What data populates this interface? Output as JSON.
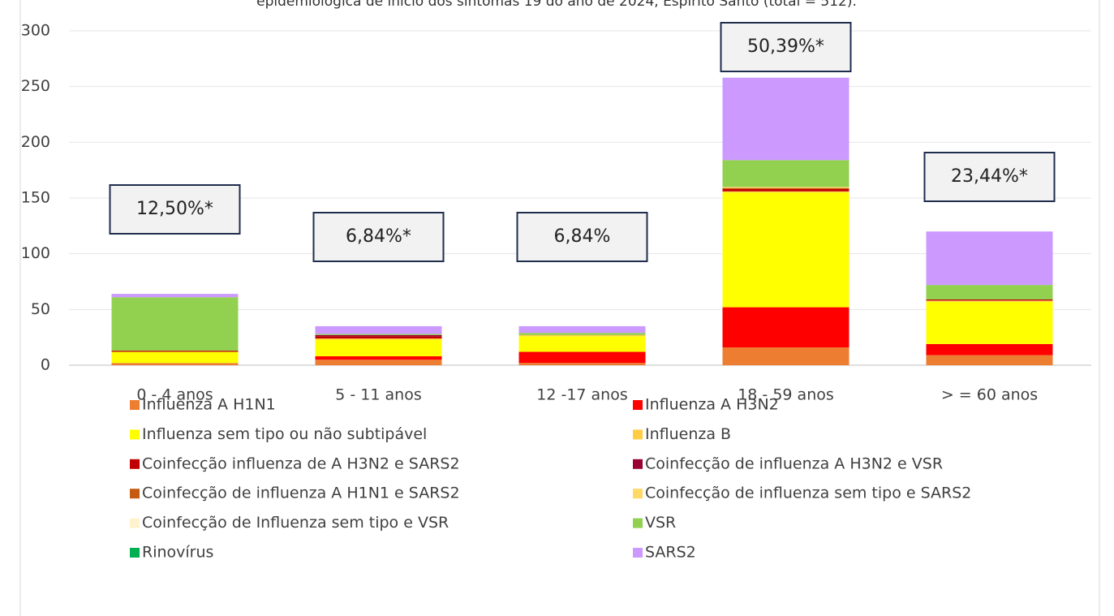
{
  "chart_data": {
    "type": "stacked_bar",
    "title": "epidemiológica de início dos sintomas 19 do ano de 2024, Espírito Santo (total = 512).",
    "categories": [
      "0 - 4  anos",
      "5 - 11 anos",
      "12 -17 anos",
      "18 - 59 anos",
      "> = 60 anos"
    ],
    "annotations": [
      "12,50%*",
      "6,84%*",
      "6,84%",
      "50,39%*",
      "23,44%*"
    ],
    "ylim": [
      0,
      300
    ],
    "yticks": [
      0,
      50,
      100,
      150,
      200,
      250,
      300
    ],
    "grid": true,
    "series": [
      {
        "name": "Influenza A H1N1",
        "color": "#ed7d31",
        "values": [
          2,
          5,
          2,
          16,
          9
        ]
      },
      {
        "name": "Influenza A H3N2",
        "color": "#ff0000",
        "values": [
          0,
          3,
          10,
          36,
          10
        ]
      },
      {
        "name": "Influenza sem tipo ou não subtipável",
        "color": "#ffff00",
        "values": [
          10,
          15,
          14,
          103,
          38
        ]
      },
      {
        "name": "Influenza B",
        "color": "#ffcc44",
        "values": [
          0,
          1,
          1,
          1,
          1
        ]
      },
      {
        "name": "Coinfecção influenza de A H3N2 e SARS2",
        "color": "#c00000",
        "values": [
          1,
          2,
          0,
          2,
          1
        ]
      },
      {
        "name": "Coinfecção de influenza A H3N2 e VSR",
        "color": "#990033",
        "values": [
          0,
          1,
          0,
          0,
          0
        ]
      },
      {
        "name": "Coinfecção de influenza A  H1N1  e SARS2",
        "color": "#c55a11",
        "values": [
          0,
          0,
          0,
          1,
          0
        ]
      },
      {
        "name": "Coinfecção de influenza sem tipo  e SARS2",
        "color": "#ffd966",
        "values": [
          0,
          0,
          0,
          1,
          0
        ]
      },
      {
        "name": "Coinfecção de Influenza  sem tipo e VSR",
        "color": "#fff2cc",
        "values": [
          0,
          0,
          0,
          0,
          0
        ]
      },
      {
        "name": "VSR",
        "color": "#92d050",
        "values": [
          48,
          1,
          2,
          24,
          13
        ]
      },
      {
        "name": "Rinovírus",
        "color": "#00b050",
        "values": [
          0,
          0,
          0,
          0,
          0
        ]
      },
      {
        "name": "SARS2",
        "color": "#cc99ff",
        "values": [
          3,
          7,
          6,
          74,
          48
        ]
      }
    ]
  }
}
